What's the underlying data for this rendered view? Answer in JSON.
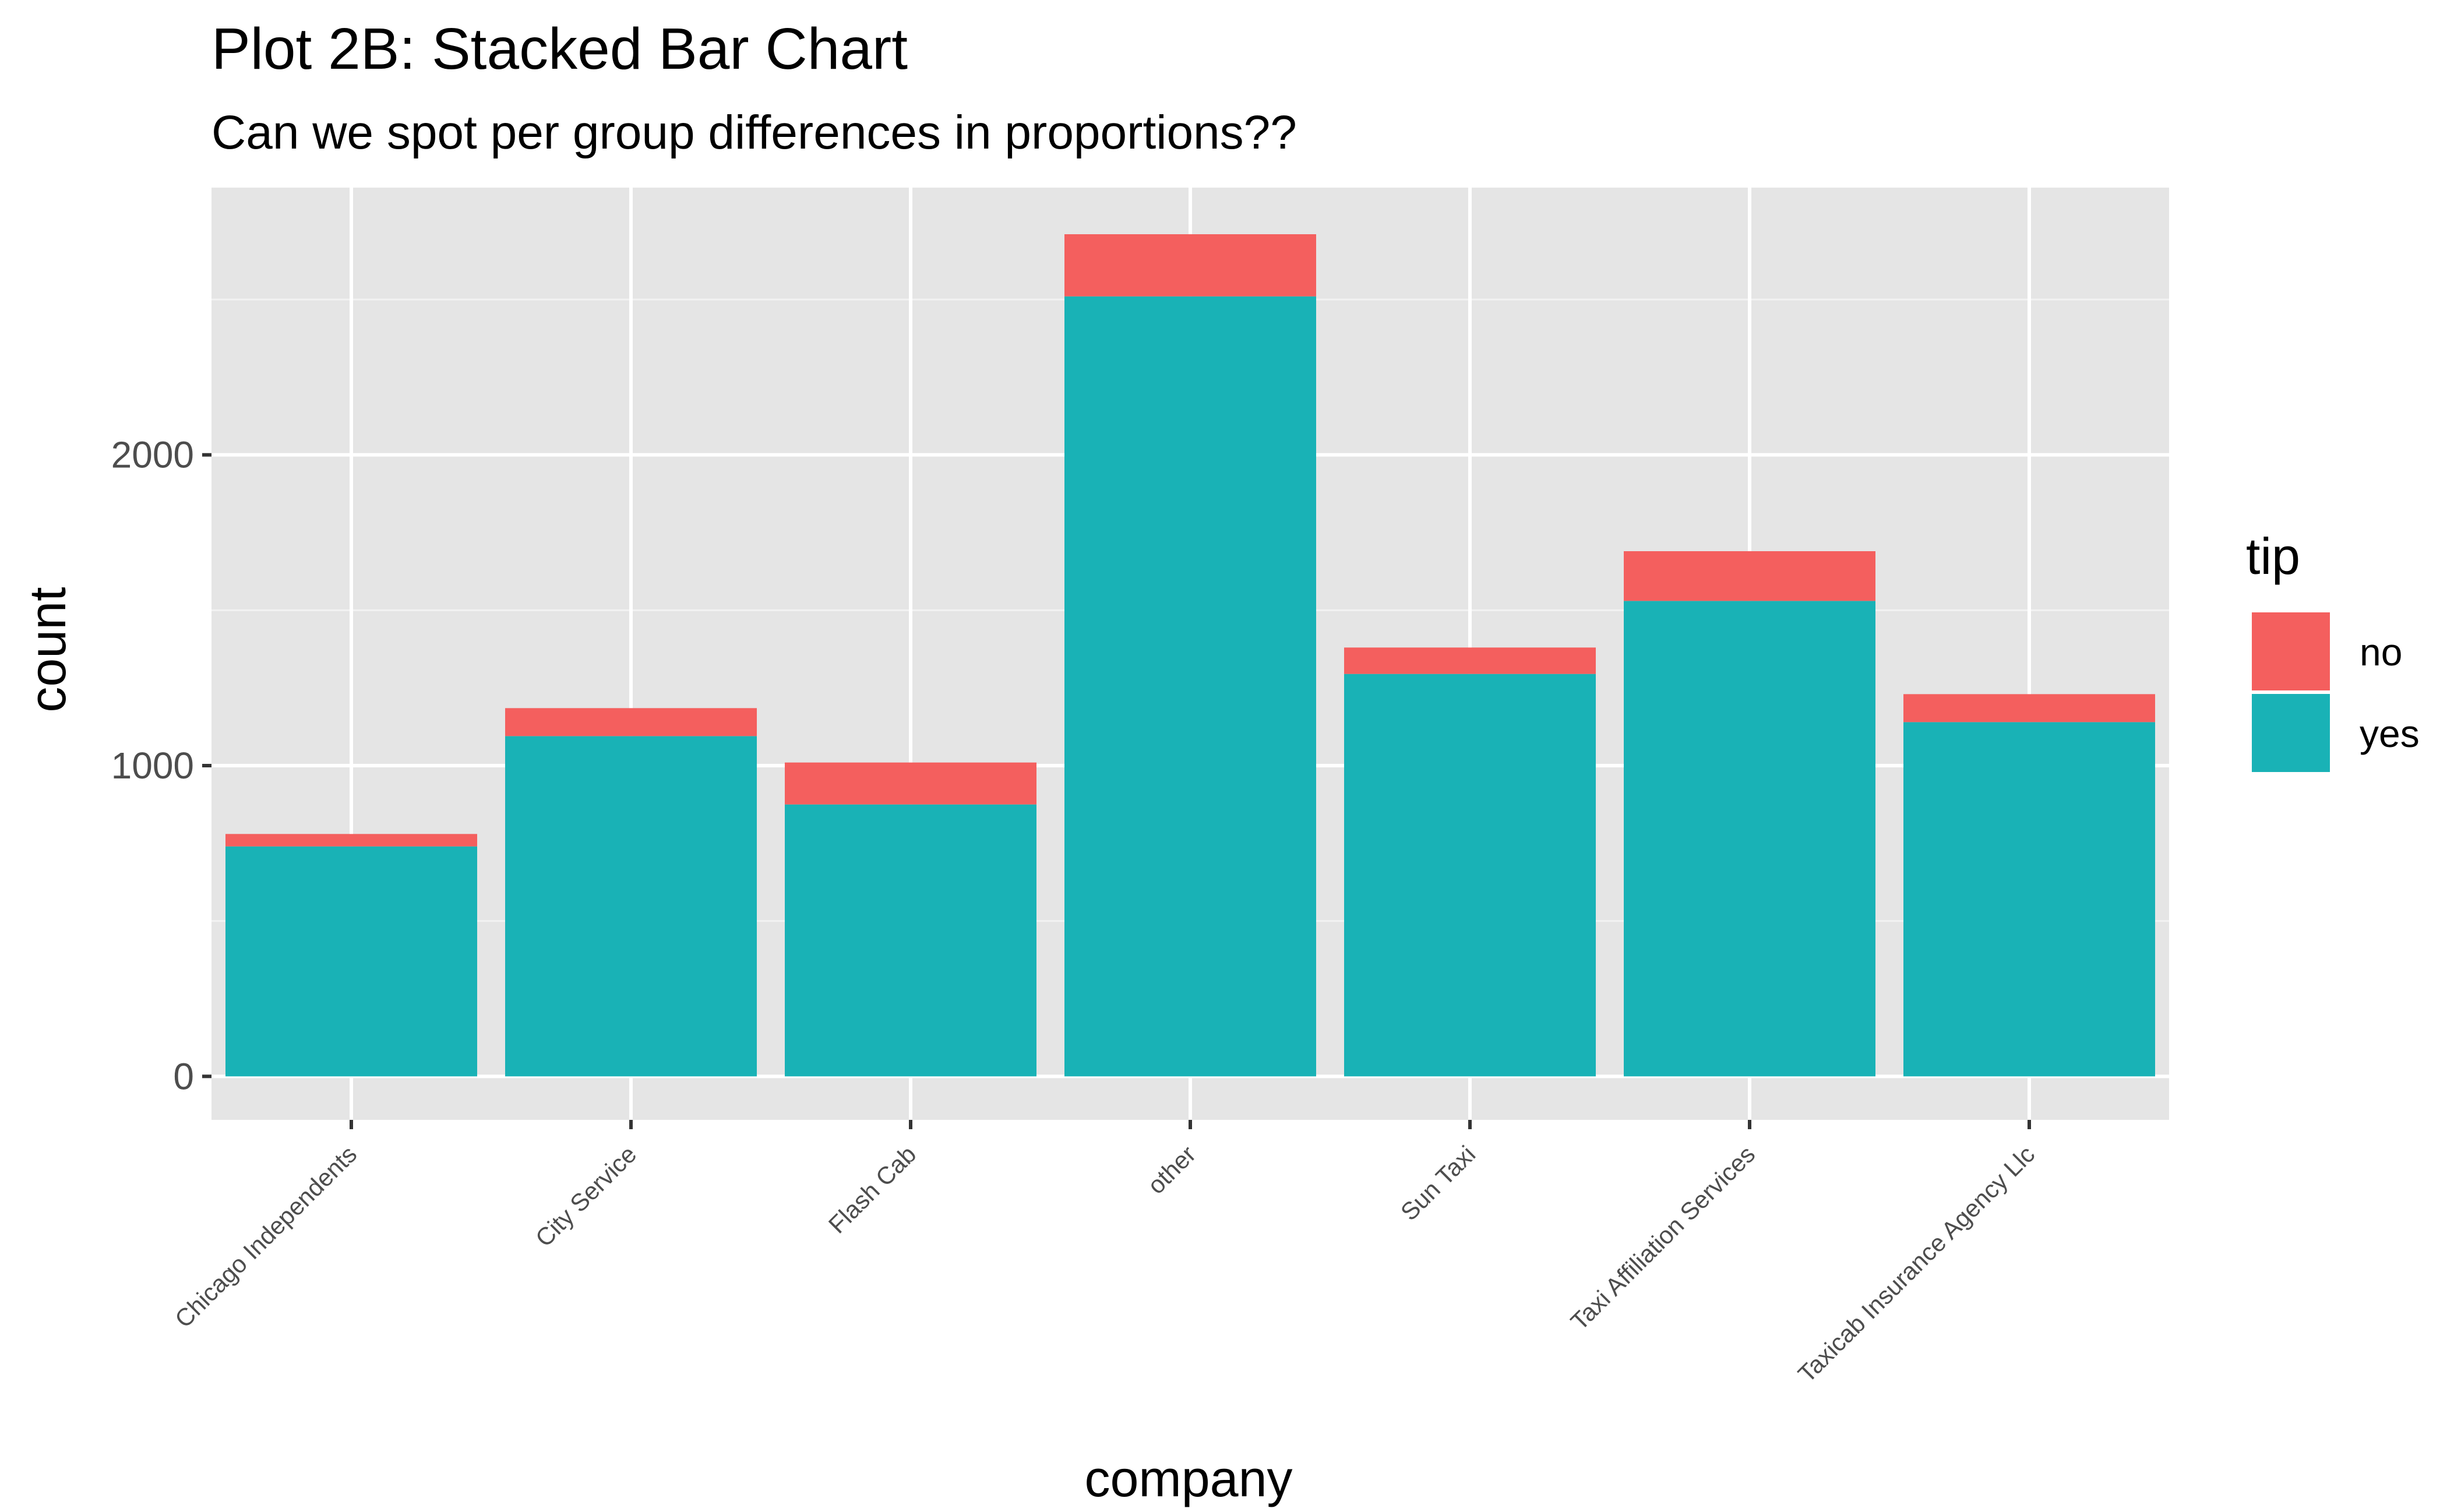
{
  "chart_data": {
    "type": "bar",
    "stacked": true,
    "title": "Plot 2B: Stacked Bar Chart",
    "subtitle": "Can we spot per group differences in proportions??",
    "xlabel": "company",
    "ylabel": "count",
    "ylim": [
      -140,
      2860
    ],
    "y_ticks": [
      0,
      1000,
      2000
    ],
    "y_tick_labels": [
      "0",
      "1000",
      "2000"
    ],
    "y_minor_ticks": [
      500,
      1500,
      2500
    ],
    "grid": true,
    "categories": [
      "Chicago Independents",
      "City Service",
      "Flash Cab",
      "other",
      "Sun Taxi",
      "Taxi Affiliation Services",
      "Taxicab Insurance Agency Llc"
    ],
    "series": [
      {
        "name": "yes",
        "color": "#19B2B6",
        "values": [
          740,
          1095,
          875,
          2510,
          1295,
          1530,
          1140
        ]
      },
      {
        "name": "no",
        "color": "#F45F5E",
        "values": [
          40,
          90,
          135,
          200,
          85,
          160,
          90
        ]
      }
    ],
    "legend": {
      "title": "tip",
      "position": "right",
      "items": [
        {
          "label": "no",
          "color": "#F45F5E"
        },
        {
          "label": "yes",
          "color": "#19B2B6"
        }
      ]
    },
    "colors": {
      "panel_background": "#E5E5E5",
      "grid_major": "#FFFFFF",
      "grid_minor": "#F2F2F2",
      "tick_mark": "#333333"
    }
  }
}
